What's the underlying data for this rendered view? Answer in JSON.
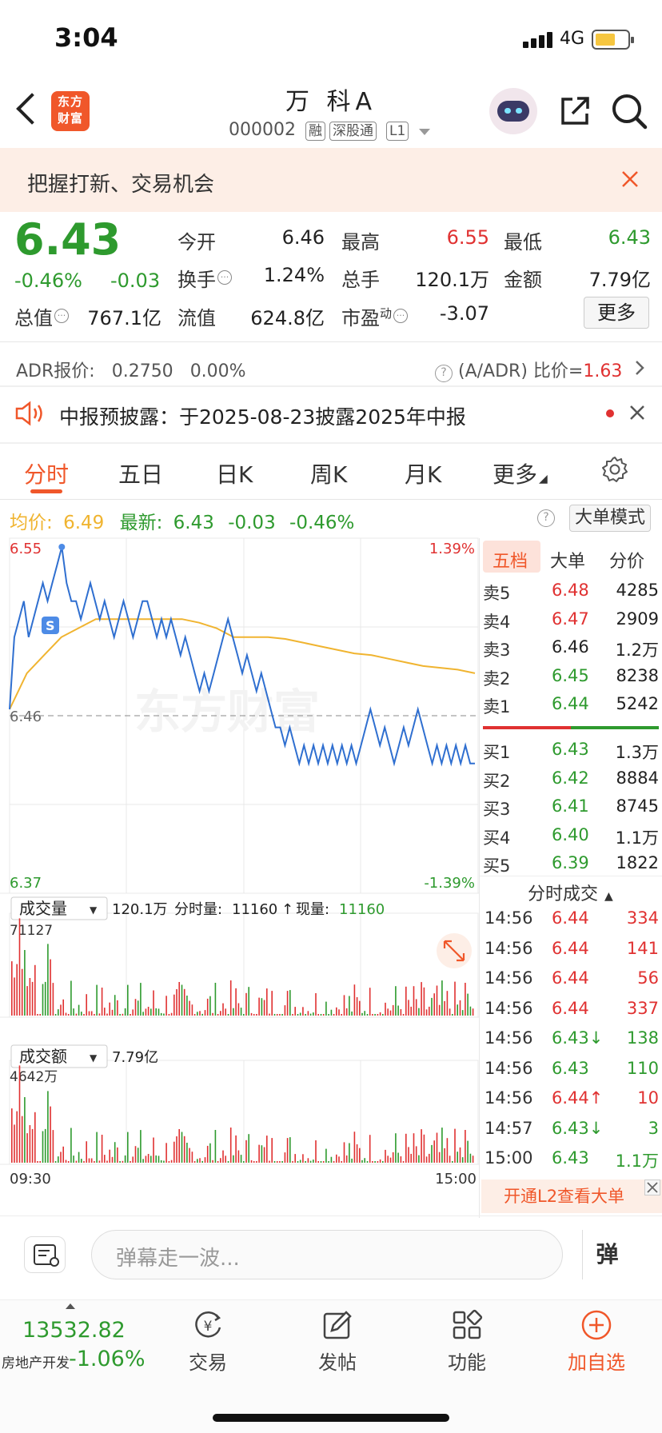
{
  "status": {
    "time": "3:04",
    "network": "4G"
  },
  "header": {
    "name": "万 科A",
    "code": "000002",
    "tags": [
      "融",
      "深股通",
      "L1"
    ],
    "logo": "东方财富"
  },
  "banner": {
    "text": "把握打新、交易机会"
  },
  "quote": {
    "price": "6.43",
    "change_pct": "-0.46%",
    "change": "-0.03",
    "stats": [
      {
        "label": "今开",
        "value": "6.46",
        "color": "#222222"
      },
      {
        "label": "最高",
        "value": "6.55",
        "color": "#e03131"
      },
      {
        "label": "最低",
        "value": "6.43",
        "color": "#2e9a2e"
      },
      {
        "label": "换手",
        "value": "1.24%",
        "color": "#222222"
      },
      {
        "label": "总手",
        "value": "120.1万",
        "color": "#222222"
      },
      {
        "label": "金额",
        "value": "7.79亿",
        "color": "#222222"
      },
      {
        "label": "总值",
        "value": "767.1亿",
        "color": "#222222"
      },
      {
        "label": "流值",
        "value": "624.8亿",
        "color": "#222222"
      },
      {
        "label": "市盈",
        "value": "-3.07",
        "color": "#222222"
      }
    ],
    "pe_sup": "动",
    "more_label": "更多"
  },
  "adr": {
    "label": "ADR报价:",
    "price": "0.2750",
    "pct": "0.00%",
    "ratio_label": "(A/ADR) 比价=",
    "ratio": "1.63"
  },
  "notice": {
    "text": "中报预披露：于2025-08-23披露2025年中报"
  },
  "tabs": [
    "分时",
    "五日",
    "日K",
    "周K",
    "月K",
    "更多"
  ],
  "avg_bar": {
    "avg_label": "均价:",
    "avg": "6.49",
    "last_label": "最新:",
    "last": "6.43",
    "chg": "-0.03",
    "pct": "-0.46%",
    "mode": "大单模式"
  },
  "chart_data": {
    "type": "line",
    "title": "",
    "x_start": "09:30",
    "x_end": "15:00",
    "ylim": [
      6.37,
      6.55
    ],
    "y_high_label": "6.55",
    "y_low_label": "6.37",
    "y_mid_label": "6.46",
    "pct_high_label": "1.39%",
    "pct_low_label": "-1.39%",
    "series": [
      {
        "color": "#2f6fd0",
        "values": [
          6.46,
          6.5,
          6.51,
          6.52,
          6.5,
          6.51,
          6.52,
          6.53,
          6.52,
          6.53,
          6.54,
          6.55,
          6.53,
          6.52,
          6.52,
          6.51,
          6.52,
          6.53,
          6.52,
          6.51,
          6.52,
          6.51,
          6.5,
          6.51,
          6.52,
          6.51,
          6.5,
          6.51,
          6.52,
          6.52,
          6.51,
          6.5,
          6.51,
          6.5,
          6.51,
          6.5,
          6.49,
          6.5,
          6.49,
          6.48,
          6.47,
          6.48,
          6.47,
          6.48,
          6.49,
          6.5,
          6.51,
          6.5,
          6.49,
          6.48,
          6.49,
          6.48,
          6.47,
          6.48,
          6.47,
          6.46,
          6.45,
          6.45,
          6.44,
          6.45,
          6.44,
          6.43,
          6.44,
          6.43,
          6.44,
          6.43,
          6.44,
          6.43,
          6.44,
          6.43,
          6.44,
          6.43,
          6.44,
          6.43,
          6.44,
          6.45,
          6.46,
          6.45,
          6.44,
          6.45,
          6.44,
          6.43,
          6.44,
          6.45,
          6.44,
          6.45,
          6.46,
          6.45,
          6.44,
          6.43,
          6.44,
          6.43,
          6.44,
          6.43,
          6.44,
          6.43,
          6.44,
          6.43,
          6.43
        ]
      },
      {
        "color": "#f0b430",
        "values": [
          6.46,
          6.48,
          6.49,
          6.5,
          6.505,
          6.51,
          6.51,
          6.51,
          6.51,
          6.51,
          6.51,
          6.508,
          6.505,
          6.5,
          6.5,
          6.5,
          6.499,
          6.497,
          6.495,
          6.493,
          6.491,
          6.49,
          6.488,
          6.486,
          6.484,
          6.483,
          6.482,
          6.48
        ]
      }
    ],
    "volume_label": "成交量",
    "volume_total": "120.1万",
    "vol_detail_label": "分时量:",
    "vol_detail": "11160",
    "now_label": "现量:",
    "now_vol": "11160",
    "vol_max": "71127",
    "amount_label": "成交额",
    "amount_total": "7.79亿",
    "amt_max": "4642万"
  },
  "orderbook": {
    "tabs": [
      "五档",
      "大单",
      "分价"
    ],
    "asks": [
      {
        "label": "卖5",
        "price": "6.48",
        "vol": "4285",
        "color": "#e03131"
      },
      {
        "label": "卖4",
        "price": "6.47",
        "vol": "2909",
        "color": "#e03131"
      },
      {
        "label": "卖3",
        "price": "6.46",
        "vol": "1.2万",
        "color": "#222222"
      },
      {
        "label": "卖2",
        "price": "6.45",
        "vol": "8238",
        "color": "#2e9a2e"
      },
      {
        "label": "卖1",
        "price": "6.44",
        "vol": "5242",
        "color": "#2e9a2e"
      }
    ],
    "bids": [
      {
        "label": "买1",
        "price": "6.43",
        "vol": "1.3万",
        "color": "#2e9a2e"
      },
      {
        "label": "买2",
        "price": "6.42",
        "vol": "8884",
        "color": "#2e9a2e"
      },
      {
        "label": "买3",
        "price": "6.41",
        "vol": "8745",
        "color": "#2e9a2e"
      },
      {
        "label": "买4",
        "price": "6.40",
        "vol": "1.1万",
        "color": "#2e9a2e"
      },
      {
        "label": "买5",
        "price": "6.39",
        "vol": "1822",
        "color": "#2e9a2e"
      }
    ],
    "ticks_title": "分时成交",
    "ticks": [
      {
        "time": "14:56",
        "price": "6.44",
        "vol": "334",
        "color": "#e03131"
      },
      {
        "time": "14:56",
        "price": "6.44",
        "vol": "141",
        "color": "#e03131"
      },
      {
        "time": "14:56",
        "price": "6.44",
        "vol": "56",
        "color": "#e03131"
      },
      {
        "time": "14:56",
        "price": "6.44",
        "vol": "337",
        "color": "#e03131"
      },
      {
        "time": "14:56",
        "price": "6.43↓",
        "vol": "138",
        "color": "#2e9a2e"
      },
      {
        "time": "14:56",
        "price": "6.43",
        "vol": "110",
        "color": "#2e9a2e"
      },
      {
        "time": "14:56",
        "price": "6.44↑",
        "vol": "10",
        "color": "#e03131"
      },
      {
        "time": "14:57",
        "price": "6.43↓",
        "vol": "3",
        "color": "#2e9a2e"
      },
      {
        "time": "15:00",
        "price": "6.43",
        "vol": "1.1万",
        "color": "#2e9a2e"
      }
    ],
    "l2_text": "开通L2查看大单"
  },
  "comment": {
    "placeholder": "弹幕走一波...",
    "danmu": "弹"
  },
  "bottom": {
    "index_value": "13532.82",
    "index_name": "房地产开发",
    "index_pct": "-1.06%",
    "nav": [
      {
        "label": "交易",
        "icon": "trade-icon"
      },
      {
        "label": "发帖",
        "icon": "post-icon"
      },
      {
        "label": "功能",
        "icon": "function-icon"
      },
      {
        "label": "加自选",
        "icon": "add-favorite-icon"
      }
    ]
  }
}
